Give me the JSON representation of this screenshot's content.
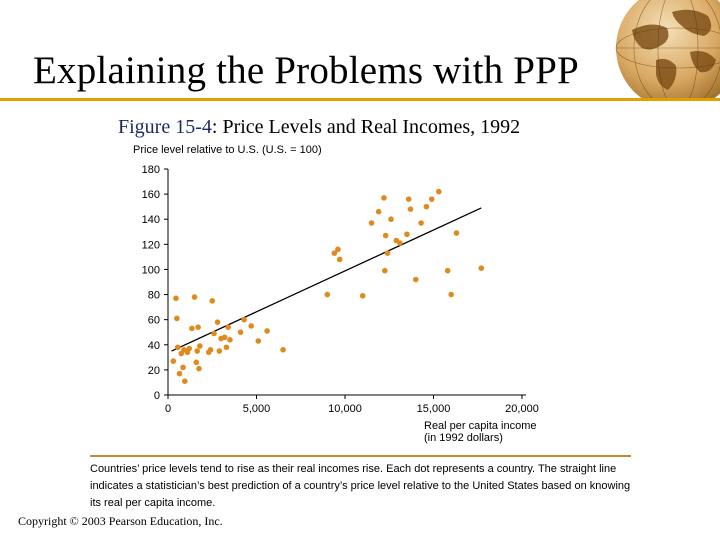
{
  "slide": {
    "title": "Explaining the Problems with PPP",
    "figure_number": "Figure 15-4",
    "figure_title": ": Price Levels and Real Incomes, 1992",
    "note": "Countries’ price levels tend to rise as their real incomes rise. Each dot represents a country. The straight line indicates a statistician’s best prediction of a country’s price level relative to the United States based on knowing its real per capita income.",
    "copyright": "Copyright © 2003 Pearson Education, Inc.",
    "accent_color": "#e0a000"
  },
  "chart_data": {
    "type": "scatter",
    "title": "Price Levels and Real Incomes, 1992",
    "ylabel": "Price level relative to U.S. (U.S. = 100)",
    "xlabel_line1": "Real per capita income",
    "xlabel_line2": "(in 1992 dollars)",
    "xlim": [
      0,
      20000
    ],
    "ylim": [
      0,
      180
    ],
    "x_ticks": [
      0,
      5000,
      10000,
      15000,
      20000
    ],
    "x_tick_labels": [
      "0",
      "5,000",
      "10,000",
      "15,000",
      "20,000"
    ],
    "y_ticks": [
      0,
      20,
      40,
      60,
      80,
      100,
      120,
      140,
      160,
      180
    ],
    "y_tick_labels": [
      "0",
      "20",
      "40",
      "60",
      "80",
      "100",
      "120",
      "140",
      "160",
      "180"
    ],
    "grid": false,
    "dot_color": "#e08a1e",
    "line_color": "#000000",
    "fit_line": {
      "x": [
        200,
        17700
      ],
      "y": [
        35,
        149
      ]
    },
    "points": [
      {
        "x": 300,
        "y": 27
      },
      {
        "x": 450,
        "y": 77
      },
      {
        "x": 500,
        "y": 61
      },
      {
        "x": 550,
        "y": 38
      },
      {
        "x": 650,
        "y": 17
      },
      {
        "x": 750,
        "y": 33
      },
      {
        "x": 850,
        "y": 22
      },
      {
        "x": 900,
        "y": 36
      },
      {
        "x": 950,
        "y": 11
      },
      {
        "x": 1100,
        "y": 34
      },
      {
        "x": 1200,
        "y": 37
      },
      {
        "x": 1350,
        "y": 53
      },
      {
        "x": 1500,
        "y": 78
      },
      {
        "x": 1600,
        "y": 26
      },
      {
        "x": 1650,
        "y": 35
      },
      {
        "x": 1700,
        "y": 54
      },
      {
        "x": 1750,
        "y": 21
      },
      {
        "x": 1800,
        "y": 39
      },
      {
        "x": 2300,
        "y": 34
      },
      {
        "x": 2400,
        "y": 36
      },
      {
        "x": 2500,
        "y": 75
      },
      {
        "x": 2600,
        "y": 49
      },
      {
        "x": 2800,
        "y": 58
      },
      {
        "x": 2900,
        "y": 35
      },
      {
        "x": 3000,
        "y": 45
      },
      {
        "x": 3200,
        "y": 46
      },
      {
        "x": 3300,
        "y": 38
      },
      {
        "x": 3400,
        "y": 54
      },
      {
        "x": 3500,
        "y": 44
      },
      {
        "x": 4100,
        "y": 50
      },
      {
        "x": 4300,
        "y": 60
      },
      {
        "x": 4700,
        "y": 55
      },
      {
        "x": 5100,
        "y": 43
      },
      {
        "x": 5600,
        "y": 51
      },
      {
        "x": 6500,
        "y": 36
      },
      {
        "x": 9000,
        "y": 80
      },
      {
        "x": 9400,
        "y": 113
      },
      {
        "x": 9600,
        "y": 116
      },
      {
        "x": 9700,
        "y": 108
      },
      {
        "x": 11000,
        "y": 79
      },
      {
        "x": 11500,
        "y": 137
      },
      {
        "x": 11900,
        "y": 146
      },
      {
        "x": 12200,
        "y": 157
      },
      {
        "x": 12250,
        "y": 99
      },
      {
        "x": 12300,
        "y": 127
      },
      {
        "x": 12400,
        "y": 113
      },
      {
        "x": 12600,
        "y": 140
      },
      {
        "x": 12900,
        "y": 123
      },
      {
        "x": 13100,
        "y": 121
      },
      {
        "x": 13500,
        "y": 128
      },
      {
        "x": 13600,
        "y": 156
      },
      {
        "x": 13700,
        "y": 148
      },
      {
        "x": 14000,
        "y": 92
      },
      {
        "x": 14300,
        "y": 137
      },
      {
        "x": 14600,
        "y": 150
      },
      {
        "x": 14900,
        "y": 156
      },
      {
        "x": 15300,
        "y": 162
      },
      {
        "x": 15800,
        "y": 99
      },
      {
        "x": 16000,
        "y": 80
      },
      {
        "x": 16300,
        "y": 129
      },
      {
        "x": 17700,
        "y": 101
      }
    ]
  }
}
